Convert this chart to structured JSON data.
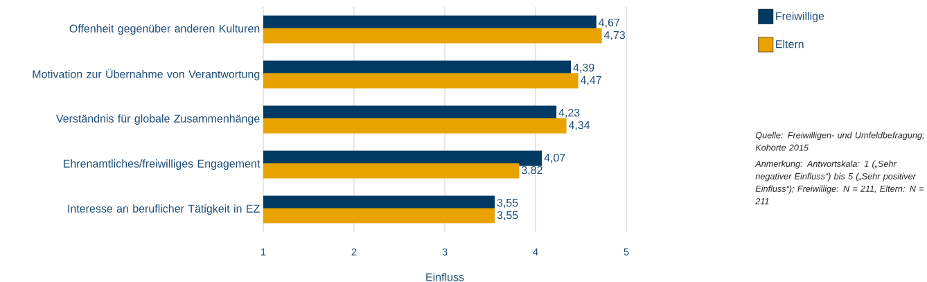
{
  "chart_data": {
    "type": "bar",
    "orientation": "horizontal",
    "xlabel": "Einfluss",
    "categories": [
      "Offenheit gegenüber anderen Kulturen",
      "Motivation zur Übernahme von Verantwortung",
      "Verständnis für globale Zusammenhänge",
      "Ehrenamtliches/freiwilliges Engagement",
      "Interesse an beruflicher Tätigkeit in EZ"
    ],
    "series": [
      {
        "name": "Freiwillige",
        "color": "#003a63",
        "values": [
          4.67,
          4.39,
          4.23,
          4.07,
          3.55
        ],
        "value_labels": [
          "4,67",
          "4,39",
          "4,23",
          "4,07",
          "3,55"
        ]
      },
      {
        "name": "Eltern",
        "color": "#e8a300",
        "values": [
          4.73,
          4.47,
          4.34,
          3.82,
          3.55
        ],
        "value_labels": [
          "4,73",
          "4,47",
          "4,34",
          "3,82",
          "3,55"
        ]
      }
    ],
    "xlim": [
      1,
      5
    ],
    "xticks": [
      1,
      2,
      3,
      4,
      5
    ],
    "grid": "x",
    "legend": "top right",
    "annotations": [
      "Quelle: Freiwilligen- und Umfeldbefragung; Kohorte 2015",
      "Anmerkung: Antwortskala: 1 („Sehr negativer Einfluss“) bis 5 („Sehr positiver Einfluss“); Freiwillige: N = 211, Eltern: N = 211"
    ]
  }
}
